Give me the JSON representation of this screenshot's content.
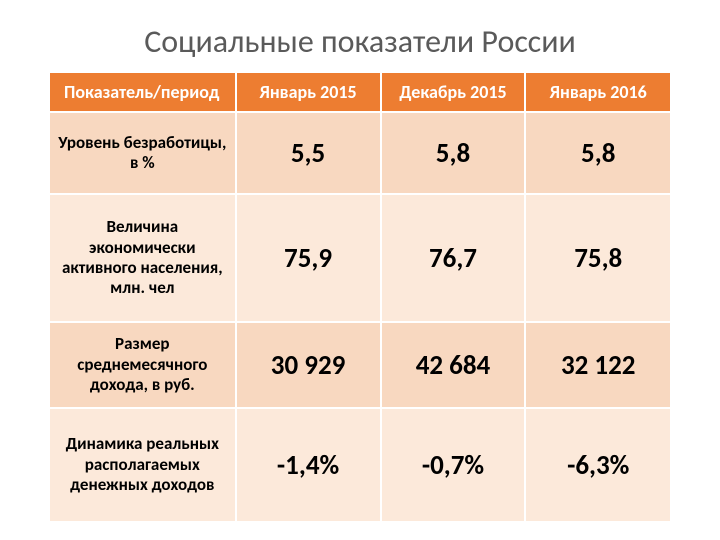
{
  "title": "Социальные показатели России",
  "table": {
    "type": "table",
    "header_bg": "#ed7d31",
    "header_fg": "#ffffff",
    "row_label_bg_odd": "#f8d8c0",
    "row_label_bg_even": "#fce9da",
    "row_value_bg_odd": "#f8d8c0",
    "row_value_bg_even": "#fce9da",
    "columns": [
      "Показатель/период",
      "Январь 2015",
      "Декабрь 2015",
      "Январь 2016"
    ],
    "rows": [
      {
        "label": "Уровень безработицы, в %",
        "values": [
          "5,5",
          "5,8",
          "5,8"
        ]
      },
      {
        "label": "Величина экономически активного населения, млн. чел",
        "values": [
          "75,9",
          "76,7",
          "75,8"
        ]
      },
      {
        "label": "Размер среднемесячного дохода, в руб.",
        "values": [
          "30 929",
          "42 684",
          "32 122"
        ]
      },
      {
        "label": "Динамика реальных располагаемых денежных доходов",
        "values": [
          "-1,4%",
          "-0,7%",
          "-6,3%"
        ]
      }
    ]
  }
}
